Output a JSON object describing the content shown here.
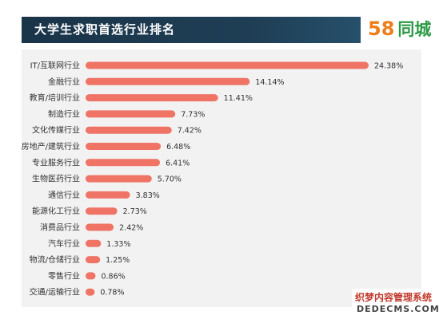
{
  "header": {
    "title": "大学生求职首选行业排名",
    "logo_digits": [
      "5",
      "8"
    ],
    "logo_text": "同城"
  },
  "watermark": {
    "line1": "织梦内容管理系统",
    "line2": "DEDECMS.COM"
  },
  "colors": {
    "bar": "#ef7466",
    "title_bg": "#1f3f56",
    "panel_bg": "#f2f2f2",
    "logo_orange": "#ef7e1a",
    "logo_green": "#2b9a46"
  },
  "chart_data": {
    "type": "bar",
    "orientation": "horizontal",
    "title": "大学生求职首选行业排名",
    "categories": [
      "IT/互联网行业",
      "金融行业",
      "教育/培训行业",
      "制造行业",
      "文化传媒行业",
      "房地产/建筑行业",
      "专业服务行业",
      "生物医药行业",
      "通信行业",
      "能源化工行业",
      "消费品行业",
      "汽车行业",
      "物流/仓储行业",
      "零售行业",
      "交通/运输行业"
    ],
    "values": [
      24.38,
      14.14,
      11.41,
      7.73,
      7.42,
      6.48,
      6.41,
      5.7,
      3.83,
      2.73,
      2.42,
      1.33,
      1.25,
      0.86,
      0.78
    ],
    "value_labels": [
      "24.38%",
      "14.14%",
      "11.41%",
      "7.73%",
      "7.42%",
      "6.48%",
      "6.41%",
      "5.70%",
      "3.83%",
      "2.73%",
      "2.42%",
      "1.33%",
      "1.25%",
      "0.86%",
      "0.78%"
    ],
    "unit": "%",
    "xlim": [
      0,
      24.38
    ],
    "xlabel": "",
    "ylabel": "",
    "grid": false,
    "legend": "none"
  }
}
